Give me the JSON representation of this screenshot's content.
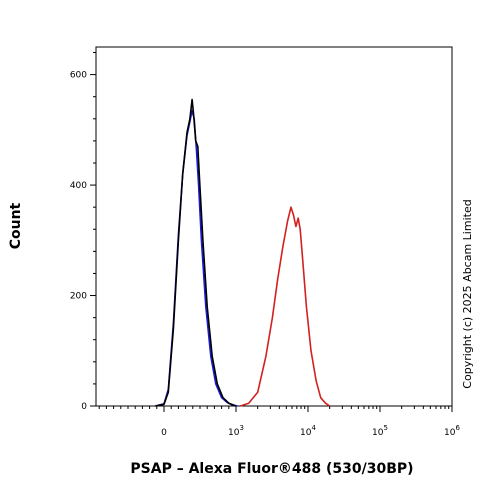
{
  "chart_data": {
    "type": "line",
    "title": "",
    "xlabel": "PSAP – Alexa Fluor®488 (530/30BP)",
    "ylabel": "Count",
    "x_scale": "biexponential",
    "xlim": [
      -1000,
      1000000
    ],
    "ylim": [
      0,
      650
    ],
    "y_ticks": [
      0,
      200,
      400,
      600
    ],
    "x_ticks": [
      {
        "value": 0,
        "base": "0",
        "exp": ""
      },
      {
        "value": 1000,
        "base": "10",
        "exp": "3"
      },
      {
        "value": 10000,
        "base": "10",
        "exp": "4"
      },
      {
        "value": 100000,
        "base": "10",
        "exp": "5"
      },
      {
        "value": 1000000,
        "base": "10",
        "exp": "6"
      }
    ],
    "grid": false,
    "legend": "none",
    "series": [
      {
        "color": "#1a1adc",
        "x": [
          -120,
          0,
          60,
          130,
          200,
          260,
          320,
          360,
          390,
          420,
          450,
          480,
          520,
          580,
          650,
          720,
          800,
          880,
          950,
          1050
        ],
        "y": [
          0,
          4,
          30,
          150,
          310,
          420,
          490,
          515,
          535,
          520,
          465,
          400,
          300,
          180,
          90,
          40,
          15,
          6,
          2,
          0
        ]
      },
      {
        "color": "#000000",
        "x": [
          -120,
          0,
          60,
          130,
          200,
          260,
          320,
          360,
          390,
          410,
          440,
          470,
          500,
          540,
          600,
          670,
          740,
          820,
          900,
          1000
        ],
        "y": [
          0,
          3,
          25,
          140,
          300,
          420,
          495,
          520,
          555,
          530,
          480,
          470,
          395,
          300,
          180,
          90,
          40,
          15,
          5,
          0
        ]
      },
      {
        "color": "#d42020",
        "x": [
          1150,
          1500,
          2000,
          2600,
          3200,
          3800,
          4500,
          5200,
          5800,
          6300,
          6800,
          7300,
          7800,
          8500,
          9500,
          11000,
          13000,
          15000,
          17500,
          20000
        ],
        "y": [
          0,
          5,
          25,
          90,
          160,
          230,
          290,
          335,
          360,
          345,
          325,
          340,
          320,
          260,
          180,
          100,
          45,
          15,
          5,
          0
        ]
      }
    ]
  },
  "copyright": "Copyright (c) 2025 Abcam Limited"
}
